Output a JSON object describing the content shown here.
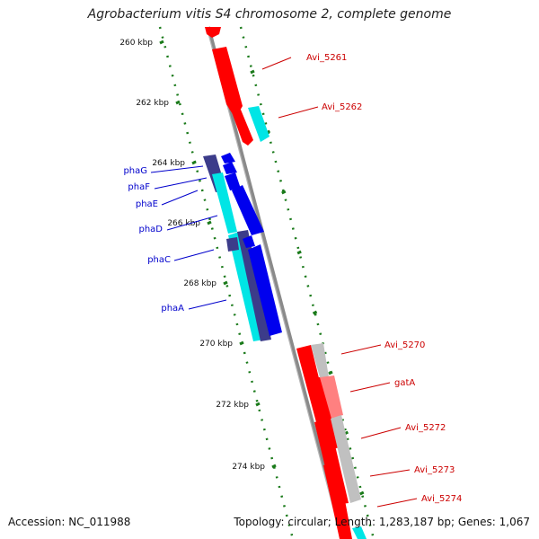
{
  "title": "Agrobacterium vitis S4 chromosome 2, complete genome",
  "footer": {
    "accession": "Accession: NC_011988",
    "summary": "Topology: circular; Length: 1,283,187 bp; Genes: 1,067"
  },
  "colors": {
    "backbone": "#8a8a8a",
    "tick": "#1a7a1a",
    "forward_gene": "#ff0000",
    "forward_cds": "#00e5e5",
    "reverse_gene": "#0000ee",
    "reverse_cds": "#3c3c8a",
    "label_red": "#cc0000",
    "label_blue": "#0000cc",
    "pseudo": "#c0c0c0"
  },
  "ticks": [
    {
      "label": "260 kbp"
    },
    {
      "label": "262 kbp"
    },
    {
      "label": "264 kbp"
    },
    {
      "label": "266 kbp"
    },
    {
      "label": "268 kbp"
    },
    {
      "label": "270 kbp"
    },
    {
      "label": "272 kbp"
    },
    {
      "label": "274 kbp"
    }
  ],
  "forward_genes": [
    {
      "name": "Avi_5261"
    },
    {
      "name": "Avi_5262"
    },
    {
      "name": "Avi_5270"
    },
    {
      "name": "gatA"
    },
    {
      "name": "Avi_5272"
    },
    {
      "name": "Avi_5273"
    },
    {
      "name": "Avi_5274"
    }
  ],
  "reverse_genes": [
    {
      "name": "phaG"
    },
    {
      "name": "phaF"
    },
    {
      "name": "phaE"
    },
    {
      "name": "phaD"
    },
    {
      "name": "phaC"
    },
    {
      "name": "phaA"
    }
  ]
}
